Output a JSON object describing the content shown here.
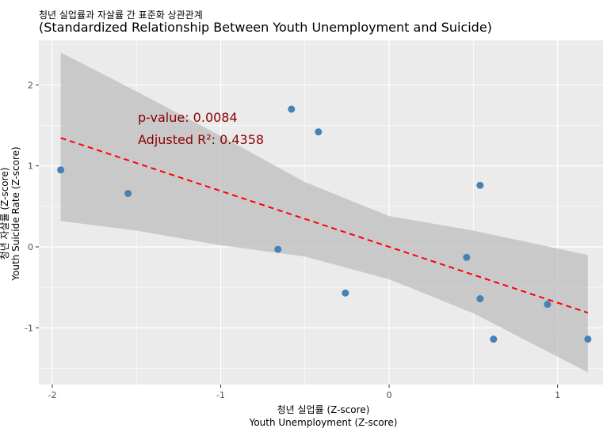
{
  "chart_data": {
    "type": "scatter",
    "title": "청년 실업률과 자살률 간 표준화 상관관계",
    "subtitle": "(Standardized Relationship Between Youth Unemployment and Suicide)",
    "xlabel_line1": "청년 실업률 (Z-score)",
    "xlabel_line2": "Youth Unemployment (Z-score)",
    "ylabel_line1": "청년 자살률 (Z-score)",
    "ylabel_line2": "Youth Suicide Rate (Z-score)",
    "xlim": [
      -2.08,
      1.27
    ],
    "ylim": [
      -1.7,
      2.55
    ],
    "xticks": [
      -2,
      -1,
      0,
      1
    ],
    "xtick_labels": [
      "-2",
      "-1",
      "0",
      "1"
    ],
    "yticks": [
      -1,
      0,
      1,
      2
    ],
    "ytick_labels": [
      "-1",
      "0",
      "1",
      "2"
    ],
    "grid": true,
    "points": [
      {
        "x": -1.95,
        "y": 0.95
      },
      {
        "x": -1.55,
        "y": 0.66
      },
      {
        "x": -0.66,
        "y": -0.03
      },
      {
        "x": -0.58,
        "y": 1.7
      },
      {
        "x": -0.42,
        "y": 1.42
      },
      {
        "x": -0.26,
        "y": -0.57
      },
      {
        "x": 0.46,
        "y": -0.13
      },
      {
        "x": 0.54,
        "y": 0.76
      },
      {
        "x": 0.54,
        "y": -0.64
      },
      {
        "x": 0.62,
        "y": -1.14
      },
      {
        "x": 0.94,
        "y": -0.71
      },
      {
        "x": 1.18,
        "y": -1.14
      }
    ],
    "regression": {
      "slope": -0.69,
      "intercept": 0.0,
      "x_range": [
        -1.95,
        1.18
      ],
      "ci_upper": [
        [
          -1.95,
          2.4
        ],
        [
          -1.5,
          1.92
        ],
        [
          -1.0,
          1.37
        ],
        [
          -0.5,
          0.8
        ],
        [
          0.0,
          0.38
        ],
        [
          0.5,
          0.2
        ],
        [
          1.18,
          -0.1
        ]
      ],
      "ci_lower": [
        [
          -1.95,
          0.32
        ],
        [
          -1.5,
          0.2
        ],
        [
          -1.0,
          0.02
        ],
        [
          -0.5,
          -0.12
        ],
        [
          0.0,
          -0.4
        ],
        [
          0.5,
          -0.82
        ],
        [
          1.18,
          -1.55
        ]
      ]
    },
    "annotations": {
      "p_value": "p-value: 0.0084",
      "adj_r2": "Adjusted R²: 0.4358"
    },
    "colors": {
      "panel": "#ebebeb",
      "grid_major": "#ffffff",
      "point": "#4682b4",
      "line": "#ff0000",
      "ribbon": "#bebebe",
      "annotation": "#8b0000"
    }
  }
}
